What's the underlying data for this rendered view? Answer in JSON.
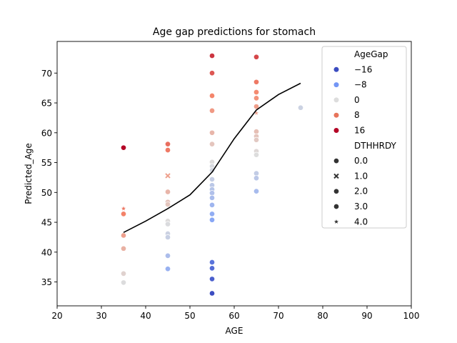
{
  "chart_data": {
    "type": "scatter",
    "title": "Age gap predictions for stomach",
    "xlabel": "AGE",
    "ylabel": "Predicted_Age",
    "xlim": [
      20,
      100
    ],
    "ylim": [
      31,
      75.3
    ],
    "xticks": [
      20,
      30,
      40,
      50,
      60,
      70,
      80,
      90,
      100
    ],
    "yticks": [
      35,
      40,
      45,
      50,
      55,
      60,
      65,
      70
    ],
    "grid": false,
    "legend": {
      "placement": "top-right",
      "hue_title": "AgeGap",
      "hue_entries": [
        {
          "label": "−16",
          "color": "#3b4cc0"
        },
        {
          "label": "−8",
          "color": "#7396f5"
        },
        {
          "label": "0",
          "color": "#dddddd"
        },
        {
          "label": "8",
          "color": "#e7745b"
        },
        {
          "label": "16",
          "color": "#b40426"
        }
      ],
      "style_title": "DTHHRDY",
      "style_entries": [
        {
          "label": "0.0",
          "marker": "circle"
        },
        {
          "label": "1.0",
          "marker": "x"
        },
        {
          "label": "2.0",
          "marker": "circle"
        },
        {
          "label": "3.0",
          "marker": "circle"
        },
        {
          "label": "4.0",
          "marker": "star"
        }
      ]
    },
    "points": [
      {
        "x": 35,
        "y": 57.5,
        "gap": 22.5,
        "marker": "circle"
      },
      {
        "x": 35,
        "y": 47.3,
        "gap": 12.3,
        "marker": "star"
      },
      {
        "x": 35,
        "y": 46.4,
        "gap": 11.4,
        "marker": "circle"
      },
      {
        "x": 35,
        "y": 42.8,
        "gap": 7.8,
        "marker": "circle"
      },
      {
        "x": 35,
        "y": 40.6,
        "gap": 5.6,
        "marker": "circle"
      },
      {
        "x": 35,
        "y": 36.4,
        "gap": 1.4,
        "marker": "circle"
      },
      {
        "x": 35,
        "y": 34.9,
        "gap": -0.1,
        "marker": "circle"
      },
      {
        "x": 45,
        "y": 58.1,
        "gap": 13.1,
        "marker": "circle"
      },
      {
        "x": 45,
        "y": 57.1,
        "gap": 12.1,
        "marker": "circle"
      },
      {
        "x": 45,
        "y": 52.8,
        "gap": 7.8,
        "marker": "x"
      },
      {
        "x": 45,
        "y": 50.1,
        "gap": 5.1,
        "marker": "circle"
      },
      {
        "x": 45,
        "y": 48.4,
        "gap": 3.4,
        "marker": "circle"
      },
      {
        "x": 45,
        "y": 48.0,
        "gap": 3.0,
        "marker": "circle"
      },
      {
        "x": 45,
        "y": 45.2,
        "gap": 0.2,
        "marker": "circle"
      },
      {
        "x": 45,
        "y": 44.7,
        "gap": -0.3,
        "marker": "circle"
      },
      {
        "x": 45,
        "y": 43.1,
        "gap": -1.9,
        "marker": "circle"
      },
      {
        "x": 45,
        "y": 42.5,
        "gap": -2.5,
        "marker": "circle"
      },
      {
        "x": 45,
        "y": 39.4,
        "gap": -5.6,
        "marker": "circle"
      },
      {
        "x": 45,
        "y": 37.2,
        "gap": -7.8,
        "marker": "circle"
      },
      {
        "x": 55,
        "y": 72.9,
        "gap": 17.9,
        "marker": "circle"
      },
      {
        "x": 55,
        "y": 70.0,
        "gap": 15.0,
        "marker": "circle"
      },
      {
        "x": 55,
        "y": 66.2,
        "gap": 11.2,
        "marker": "circle"
      },
      {
        "x": 55,
        "y": 63.7,
        "gap": 8.7,
        "marker": "circle"
      },
      {
        "x": 55,
        "y": 60.0,
        "gap": 5.0,
        "marker": "circle"
      },
      {
        "x": 55,
        "y": 58.1,
        "gap": 3.1,
        "marker": "circle"
      },
      {
        "x": 55,
        "y": 55.1,
        "gap": 0.1,
        "marker": "circle"
      },
      {
        "x": 55,
        "y": 54.4,
        "gap": -0.6,
        "marker": "circle"
      },
      {
        "x": 55,
        "y": 53.7,
        "gap": -1.3,
        "marker": "circle"
      },
      {
        "x": 55,
        "y": 52.2,
        "gap": -2.8,
        "marker": "circle"
      },
      {
        "x": 55,
        "y": 51.2,
        "gap": -3.8,
        "marker": "circle"
      },
      {
        "x": 55,
        "y": 50.5,
        "gap": -4.5,
        "marker": "circle"
      },
      {
        "x": 55,
        "y": 49.9,
        "gap": -5.1,
        "marker": "circle"
      },
      {
        "x": 55,
        "y": 49.1,
        "gap": -5.9,
        "marker": "circle"
      },
      {
        "x": 55,
        "y": 47.9,
        "gap": -7.1,
        "marker": "circle"
      },
      {
        "x": 55,
        "y": 46.4,
        "gap": -8.6,
        "marker": "circle"
      },
      {
        "x": 55,
        "y": 45.4,
        "gap": -9.6,
        "marker": "circle"
      },
      {
        "x": 55,
        "y": 38.3,
        "gap": -16.7,
        "marker": "circle"
      },
      {
        "x": 55,
        "y": 37.3,
        "gap": -17.7,
        "marker": "circle"
      },
      {
        "x": 55,
        "y": 35.5,
        "gap": -19.5,
        "marker": "circle"
      },
      {
        "x": 55,
        "y": 33.1,
        "gap": -21.9,
        "marker": "circle"
      },
      {
        "x": 65,
        "y": 72.7,
        "gap": 16.4,
        "marker": "circle"
      },
      {
        "x": 65,
        "y": 68.5,
        "gap": 12.2,
        "marker": "circle"
      },
      {
        "x": 65,
        "y": 66.8,
        "gap": 10.5,
        "marker": "circle"
      },
      {
        "x": 65,
        "y": 65.8,
        "gap": 9.5,
        "marker": "circle"
      },
      {
        "x": 65,
        "y": 64.4,
        "gap": 8.1,
        "marker": "circle"
      },
      {
        "x": 65,
        "y": 63.3,
        "gap": 7.0,
        "marker": "star"
      },
      {
        "x": 65,
        "y": 60.2,
        "gap": 3.9,
        "marker": "circle"
      },
      {
        "x": 65,
        "y": 59.4,
        "gap": 3.1,
        "marker": "circle"
      },
      {
        "x": 65,
        "y": 58.8,
        "gap": 2.5,
        "marker": "circle"
      },
      {
        "x": 65,
        "y": 56.9,
        "gap": 0.6,
        "marker": "circle"
      },
      {
        "x": 65,
        "y": 56.3,
        "gap": 0.0,
        "marker": "circle"
      },
      {
        "x": 65,
        "y": 53.2,
        "gap": -3.1,
        "marker": "circle"
      },
      {
        "x": 65,
        "y": 52.4,
        "gap": -3.9,
        "marker": "circle"
      },
      {
        "x": 65,
        "y": 50.2,
        "gap": -6.1,
        "marker": "circle"
      },
      {
        "x": 75,
        "y": 64.2,
        "gap": -2.0,
        "marker": "circle"
      }
    ],
    "trend_line": {
      "x": [
        35,
        40,
        45,
        50,
        55,
        60,
        65,
        70,
        75
      ],
      "y": [
        43.3,
        45.2,
        47.3,
        49.6,
        53.4,
        59.0,
        63.8,
        66.4,
        68.3
      ]
    }
  }
}
